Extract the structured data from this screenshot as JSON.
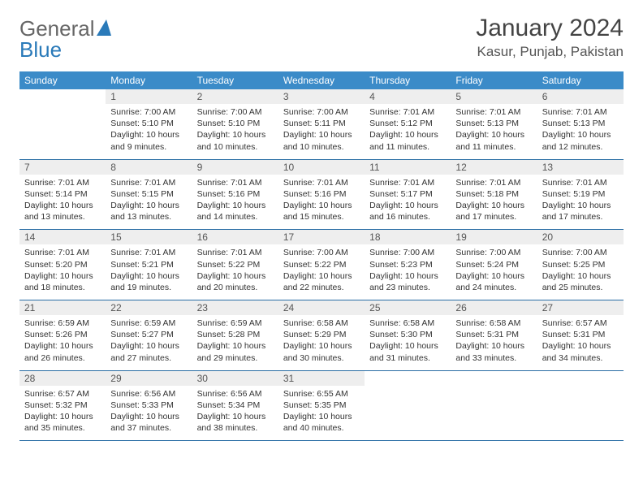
{
  "brand": {
    "part1": "General",
    "part2": "Blue"
  },
  "title": "January 2024",
  "location": "Kasur, Punjab, Pakistan",
  "colors": {
    "header_bg": "#3b8bc8",
    "header_text": "#ffffff",
    "daynum_bg": "#eeeeee",
    "week_border": "#2a6ea5",
    "brand_grey": "#666666",
    "brand_blue": "#2a7ab9"
  },
  "dow": [
    "Sunday",
    "Monday",
    "Tuesday",
    "Wednesday",
    "Thursday",
    "Friday",
    "Saturday"
  ],
  "weeks": [
    [
      {
        "n": "",
        "lines": []
      },
      {
        "n": "1",
        "lines": [
          "Sunrise: 7:00 AM",
          "Sunset: 5:10 PM",
          "Daylight: 10 hours and 9 minutes."
        ]
      },
      {
        "n": "2",
        "lines": [
          "Sunrise: 7:00 AM",
          "Sunset: 5:10 PM",
          "Daylight: 10 hours and 10 minutes."
        ]
      },
      {
        "n": "3",
        "lines": [
          "Sunrise: 7:00 AM",
          "Sunset: 5:11 PM",
          "Daylight: 10 hours and 10 minutes."
        ]
      },
      {
        "n": "4",
        "lines": [
          "Sunrise: 7:01 AM",
          "Sunset: 5:12 PM",
          "Daylight: 10 hours and 11 minutes."
        ]
      },
      {
        "n": "5",
        "lines": [
          "Sunrise: 7:01 AM",
          "Sunset: 5:13 PM",
          "Daylight: 10 hours and 11 minutes."
        ]
      },
      {
        "n": "6",
        "lines": [
          "Sunrise: 7:01 AM",
          "Sunset: 5:13 PM",
          "Daylight: 10 hours and 12 minutes."
        ]
      }
    ],
    [
      {
        "n": "7",
        "lines": [
          "Sunrise: 7:01 AM",
          "Sunset: 5:14 PM",
          "Daylight: 10 hours and 13 minutes."
        ]
      },
      {
        "n": "8",
        "lines": [
          "Sunrise: 7:01 AM",
          "Sunset: 5:15 PM",
          "Daylight: 10 hours and 13 minutes."
        ]
      },
      {
        "n": "9",
        "lines": [
          "Sunrise: 7:01 AM",
          "Sunset: 5:16 PM",
          "Daylight: 10 hours and 14 minutes."
        ]
      },
      {
        "n": "10",
        "lines": [
          "Sunrise: 7:01 AM",
          "Sunset: 5:16 PM",
          "Daylight: 10 hours and 15 minutes."
        ]
      },
      {
        "n": "11",
        "lines": [
          "Sunrise: 7:01 AM",
          "Sunset: 5:17 PM",
          "Daylight: 10 hours and 16 minutes."
        ]
      },
      {
        "n": "12",
        "lines": [
          "Sunrise: 7:01 AM",
          "Sunset: 5:18 PM",
          "Daylight: 10 hours and 17 minutes."
        ]
      },
      {
        "n": "13",
        "lines": [
          "Sunrise: 7:01 AM",
          "Sunset: 5:19 PM",
          "Daylight: 10 hours and 17 minutes."
        ]
      }
    ],
    [
      {
        "n": "14",
        "lines": [
          "Sunrise: 7:01 AM",
          "Sunset: 5:20 PM",
          "Daylight: 10 hours and 18 minutes."
        ]
      },
      {
        "n": "15",
        "lines": [
          "Sunrise: 7:01 AM",
          "Sunset: 5:21 PM",
          "Daylight: 10 hours and 19 minutes."
        ]
      },
      {
        "n": "16",
        "lines": [
          "Sunrise: 7:01 AM",
          "Sunset: 5:22 PM",
          "Daylight: 10 hours and 20 minutes."
        ]
      },
      {
        "n": "17",
        "lines": [
          "Sunrise: 7:00 AM",
          "Sunset: 5:22 PM",
          "Daylight: 10 hours and 22 minutes."
        ]
      },
      {
        "n": "18",
        "lines": [
          "Sunrise: 7:00 AM",
          "Sunset: 5:23 PM",
          "Daylight: 10 hours and 23 minutes."
        ]
      },
      {
        "n": "19",
        "lines": [
          "Sunrise: 7:00 AM",
          "Sunset: 5:24 PM",
          "Daylight: 10 hours and 24 minutes."
        ]
      },
      {
        "n": "20",
        "lines": [
          "Sunrise: 7:00 AM",
          "Sunset: 5:25 PM",
          "Daylight: 10 hours and 25 minutes."
        ]
      }
    ],
    [
      {
        "n": "21",
        "lines": [
          "Sunrise: 6:59 AM",
          "Sunset: 5:26 PM",
          "Daylight: 10 hours and 26 minutes."
        ]
      },
      {
        "n": "22",
        "lines": [
          "Sunrise: 6:59 AM",
          "Sunset: 5:27 PM",
          "Daylight: 10 hours and 27 minutes."
        ]
      },
      {
        "n": "23",
        "lines": [
          "Sunrise: 6:59 AM",
          "Sunset: 5:28 PM",
          "Daylight: 10 hours and 29 minutes."
        ]
      },
      {
        "n": "24",
        "lines": [
          "Sunrise: 6:58 AM",
          "Sunset: 5:29 PM",
          "Daylight: 10 hours and 30 minutes."
        ]
      },
      {
        "n": "25",
        "lines": [
          "Sunrise: 6:58 AM",
          "Sunset: 5:30 PM",
          "Daylight: 10 hours and 31 minutes."
        ]
      },
      {
        "n": "26",
        "lines": [
          "Sunrise: 6:58 AM",
          "Sunset: 5:31 PM",
          "Daylight: 10 hours and 33 minutes."
        ]
      },
      {
        "n": "27",
        "lines": [
          "Sunrise: 6:57 AM",
          "Sunset: 5:31 PM",
          "Daylight: 10 hours and 34 minutes."
        ]
      }
    ],
    [
      {
        "n": "28",
        "lines": [
          "Sunrise: 6:57 AM",
          "Sunset: 5:32 PM",
          "Daylight: 10 hours and 35 minutes."
        ]
      },
      {
        "n": "29",
        "lines": [
          "Sunrise: 6:56 AM",
          "Sunset: 5:33 PM",
          "Daylight: 10 hours and 37 minutes."
        ]
      },
      {
        "n": "30",
        "lines": [
          "Sunrise: 6:56 AM",
          "Sunset: 5:34 PM",
          "Daylight: 10 hours and 38 minutes."
        ]
      },
      {
        "n": "31",
        "lines": [
          "Sunrise: 6:55 AM",
          "Sunset: 5:35 PM",
          "Daylight: 10 hours and 40 minutes."
        ]
      },
      {
        "n": "",
        "lines": []
      },
      {
        "n": "",
        "lines": []
      },
      {
        "n": "",
        "lines": []
      }
    ]
  ]
}
